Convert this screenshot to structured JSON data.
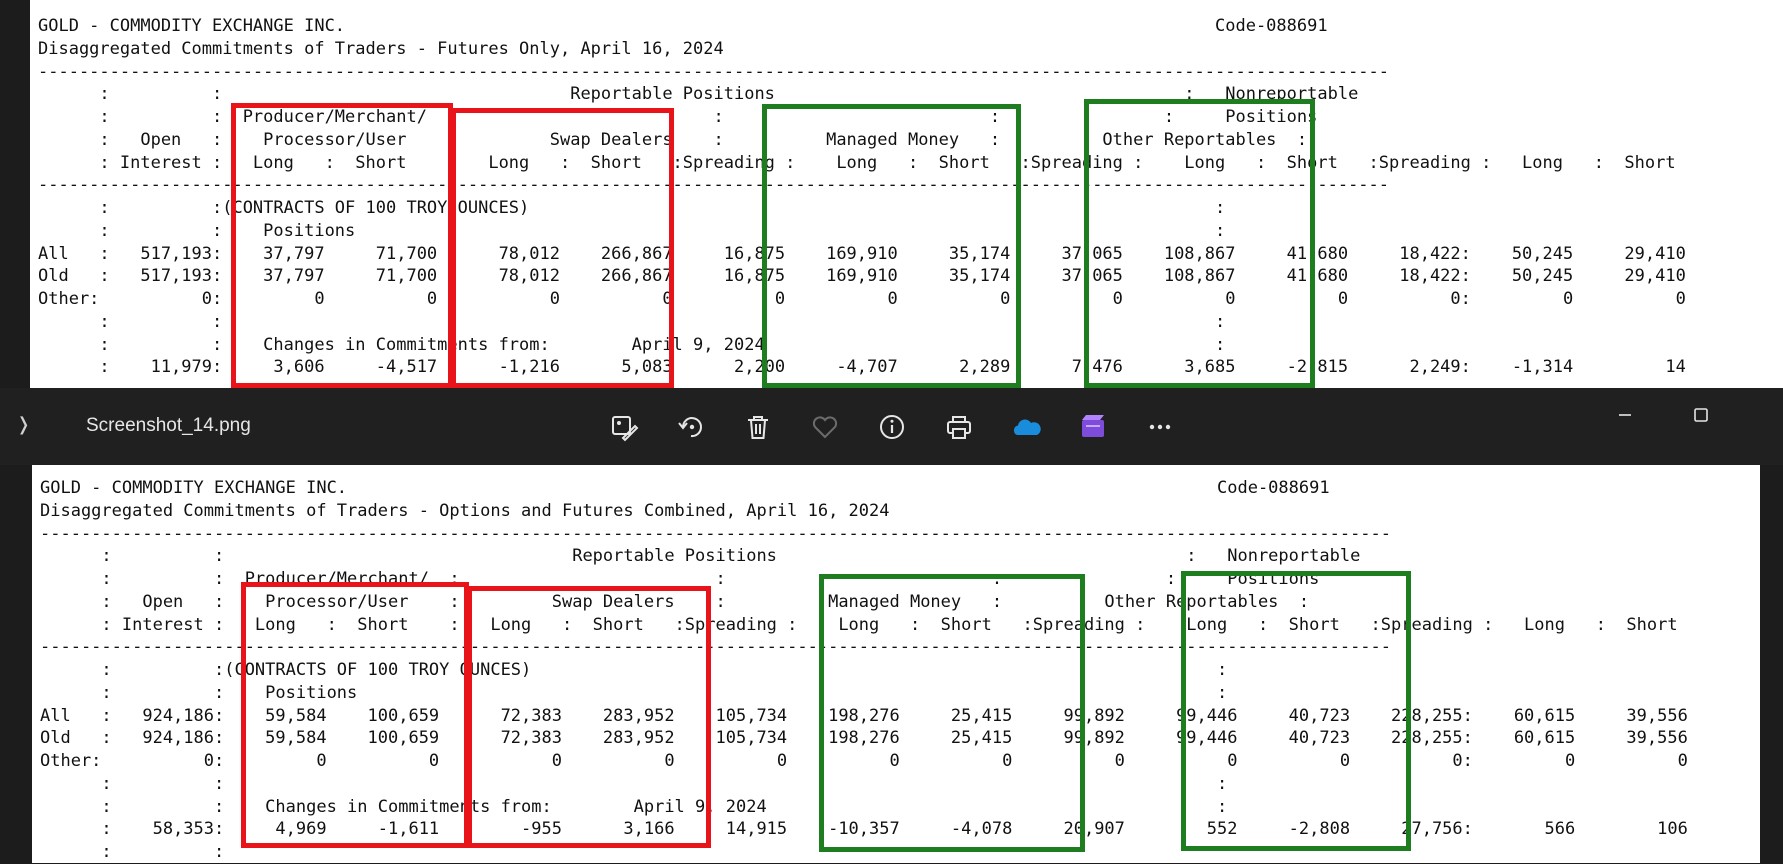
{
  "top_report": {
    "text": "GOLD - COMMODITY EXCHANGE INC.                                                                                     Code-088691\nDisaggregated Commitments of Traders - Futures Only, April 16, 2024\n------------------------------------------------------------------------------------------------------------------------------------\n      :          :                                  Reportable Positions                                        :   Nonreportable\n      :          :  Producer/Merchant/  :                         :                          :                :     Positions\n      :   Open   :    Processor/User    :         Swap Dealers    :          Managed Money   :          Other Reportables  :\n      : Interest :   Long   :  Short    :   Long   :  Short   :Spreading :    Long   :  Short   :Spreading :    Long   :  Short   :Spreading :   Long   :  Short\n------------------------------------------------------------------------------------------------------------------------------------\n      :          :(CONTRACTS OF 100 TROY OUNCES)                                                                   :\n      :          :    Positions                                                                                    :\nAll   :   517,193:    37,797     71,700      78,012    266,867     16,875    169,910     35,174     37,065    108,867     41,680     18,422:    50,245     29,410\nOld   :   517,193:    37,797     71,700      78,012    266,867     16,875    169,910     35,174     37,065    108,867     41,680     18,422:    50,245     29,410\nOther:          0:         0          0           0          0          0          0          0          0          0          0          0:         0          0\n      :          :                                                                                                 :\n      :          :    Changes in Commitments from:        April 9, 2024                                            :\n      :    11,979:     3,606     -4,517      -1,216      5,083      2,200     -4,707      2,289      7,476      3,685     -2,815      2,249:    -1,314         14"
  },
  "viewer_toolbar": {
    "file_name": "Screenshot_14.png",
    "icons": [
      "edit-image-icon",
      "rotate-icon",
      "delete-icon",
      "favorite-icon",
      "info-icon",
      "print-icon",
      "onedrive-icon",
      "clipchamp-icon",
      "more-icon"
    ],
    "window_controls": [
      "minimize-icon",
      "maximize-icon"
    ]
  },
  "bottom_report": {
    "text": "GOLD - COMMODITY EXCHANGE INC.                                                                                     Code-088691\nDisaggregated Commitments of Traders - Options and Futures Combined, April 16, 2024\n------------------------------------------------------------------------------------------------------------------------------------\n      :          :                                  Reportable Positions                                        :   Nonreportable\n      :          :  Producer/Merchant/  :                         :                          :                :     Positions\n      :   Open   :    Processor/User    :         Swap Dealers    :          Managed Money   :          Other Reportables  :\n      : Interest :   Long   :  Short    :   Long   :  Short   :Spreading :    Long   :  Short   :Spreading :    Long   :  Short   :Spreading :   Long   :  Short\n------------------------------------------------------------------------------------------------------------------------------------\n      :          :(CONTRACTS OF 100 TROY OUNCES)                                                                   :\n      :          :    Positions                                                                                    :\nAll   :   924,186:    59,584    100,659      72,383    283,952    105,734    198,276     25,415     99,892     99,446     40,723    228,255:    60,615     39,556\nOld   :   924,186:    59,584    100,659      72,383    283,952    105,734    198,276     25,415     99,892     99,446     40,723    228,255:    60,615     39,556\nOther:          0:         0          0           0          0          0          0          0          0          0          0          0:         0          0\n      :          :                                                                                                 :\n      :          :    Changes in Commitments from:        April 9, 2024                                            :\n      :    58,353:     4,969     -1,611        -955      3,166     14,915    -10,357     -4,078     20,907        552     -2,808     27,756:       566        106\n      :          :"
  },
  "annotation_colors": {
    "red": "#e8141a",
    "green": "#1e7d1e"
  }
}
